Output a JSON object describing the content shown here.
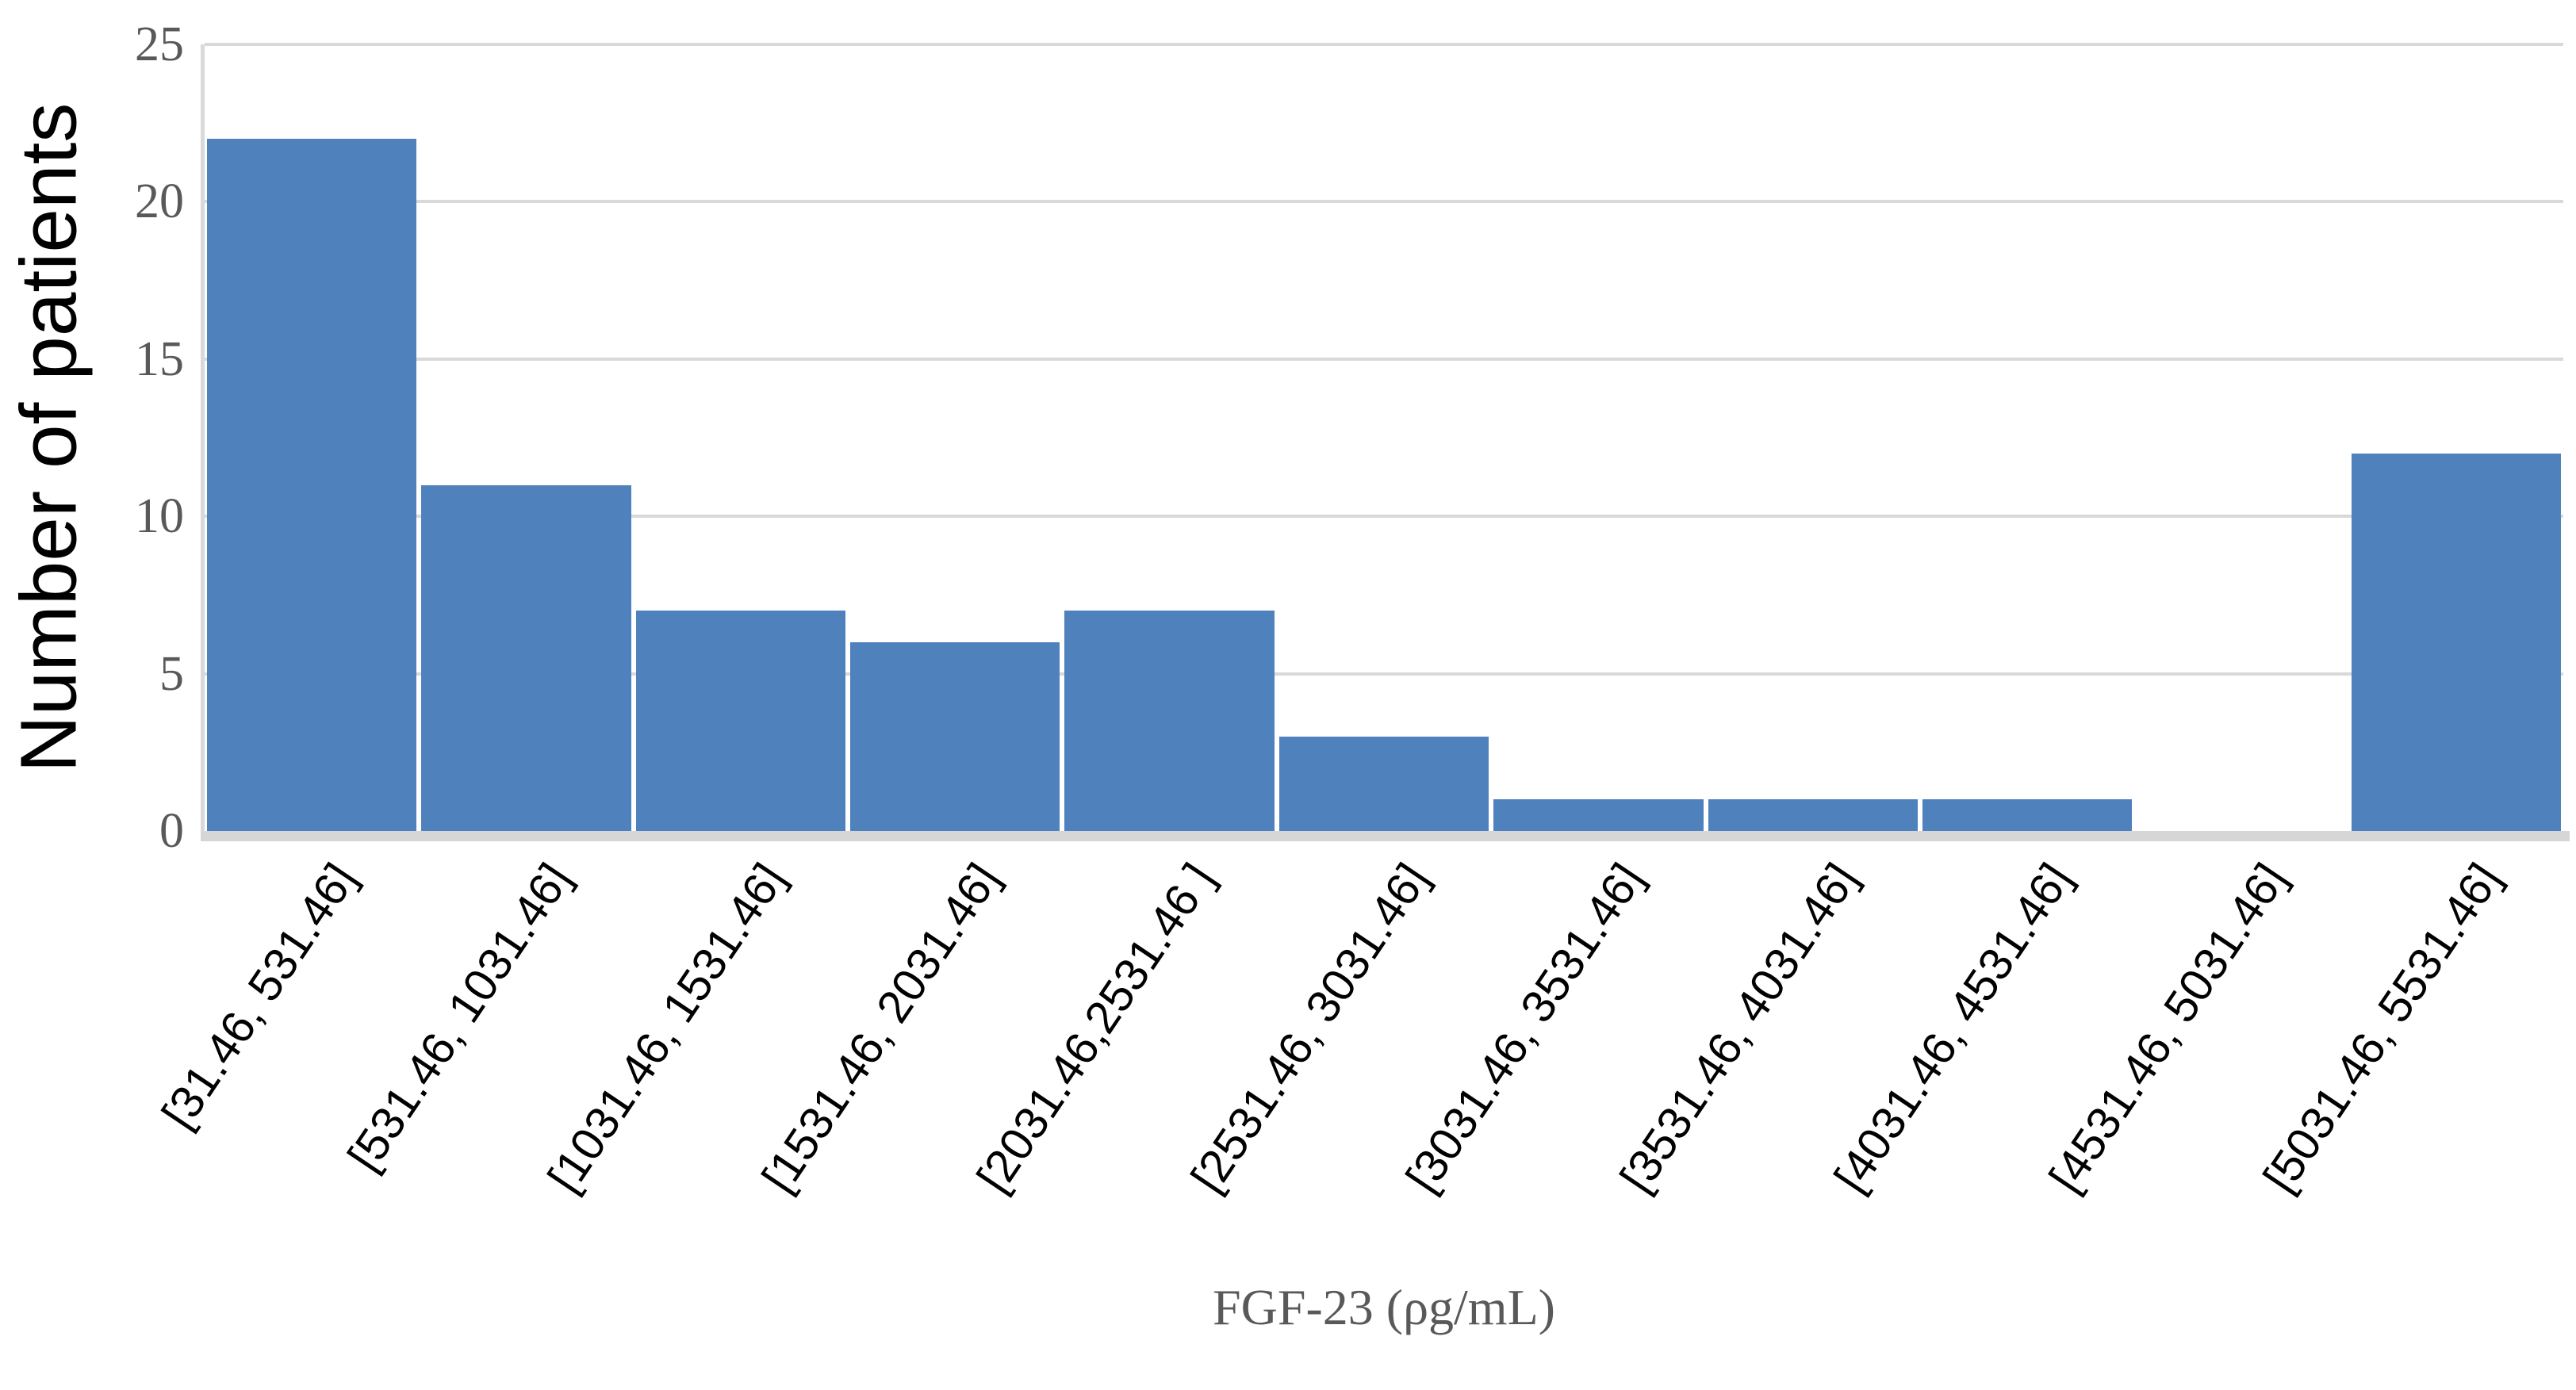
{
  "chart_data": {
    "type": "bar",
    "title": "",
    "categories": [
      "[31.46, 531.46]",
      "[531.46, 1031.46]",
      "[1031.46, 1531.46]",
      "[1531.46, 2031.46]",
      "[2031.46,2531.46 ]",
      "[2531.46, 3031.46]",
      "[3031.46, 3531.46]",
      "[3531.46, 4031.46]",
      "[4031.46, 4531.46]",
      "[4531.46, 5031.46]",
      "[5031.46, 5531.46]"
    ],
    "values": [
      22,
      11,
      7,
      6,
      7,
      3,
      1,
      1,
      1,
      0,
      12
    ],
    "xlabel": "FGF-23 (ρg/mL)",
    "ylabel": "Number of patients",
    "y_ticks": [
      0,
      5,
      10,
      15,
      20,
      25
    ],
    "ylim": [
      0,
      25
    ],
    "grid": true,
    "legend": false,
    "colors": {
      "bar": "#4F81BD",
      "gridline": "#D9D9D9",
      "baseline": "#D6D6D6",
      "axis_text_gray": "#595959",
      "x_tick_text": "#000000",
      "y_title_text": "#000000"
    }
  }
}
